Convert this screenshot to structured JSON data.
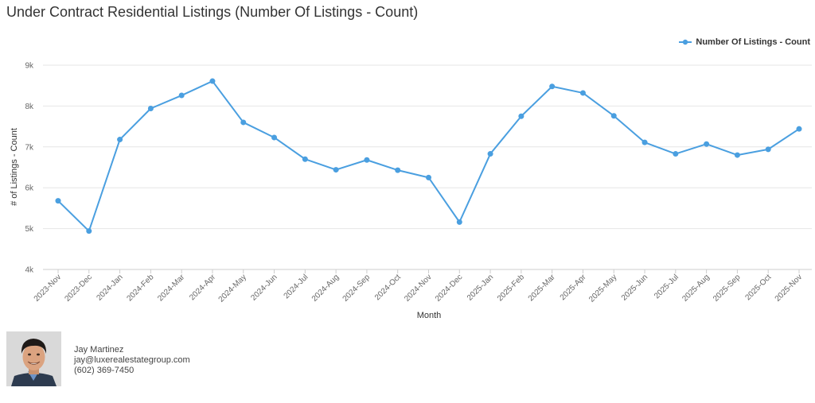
{
  "title": "Under Contract Residential Listings (Number Of Listings - Count)",
  "legend_label": "Number Of Listings - Count",
  "colors": {
    "series": "#4a9fe0",
    "grid": "#e6e6e6",
    "axis": "#cccccc"
  },
  "chart_data": {
    "type": "line",
    "title": "Under Contract Residential Listings (Number Of Listings - Count)",
    "xlabel": "Month",
    "ylabel": "# of Listings - Count",
    "ylim": [
      4000,
      9000
    ],
    "yticks": [
      4000,
      5000,
      6000,
      7000,
      8000,
      9000
    ],
    "ytick_labels": [
      "4k",
      "5k",
      "6k",
      "7k",
      "8k",
      "9k"
    ],
    "grid": true,
    "legend_position": "top-right",
    "categories": [
      "2023-Nov",
      "2023-Dec",
      "2024-Jan",
      "2024-Feb",
      "2024-Mar",
      "2024-Apr",
      "2024-May",
      "2024-Jun",
      "2024-Jul",
      "2024-Aug",
      "2024-Sep",
      "2024-Oct",
      "2024-Nov",
      "2024-Dec",
      "2025-Jan",
      "2025-Feb",
      "2025-Mar",
      "2025-Apr",
      "2025-May",
      "2025-Jun",
      "2025-Jul",
      "2025-Aug",
      "2025-Sep",
      "2025-Oct",
      "2025-Nov"
    ],
    "series": [
      {
        "name": "Number Of Listings - Count",
        "values": [
          5680,
          4940,
          7180,
          7940,
          8260,
          8610,
          7600,
          7230,
          6700,
          6440,
          6680,
          6430,
          6250,
          5160,
          6830,
          7750,
          8480,
          8320,
          7760,
          7110,
          6830,
          7070,
          6800,
          6940,
          7440
        ]
      }
    ]
  },
  "agent": {
    "name": "Jay Martinez",
    "email": "jay@luxerealestategroup.com",
    "phone": "(602) 369-7450"
  }
}
